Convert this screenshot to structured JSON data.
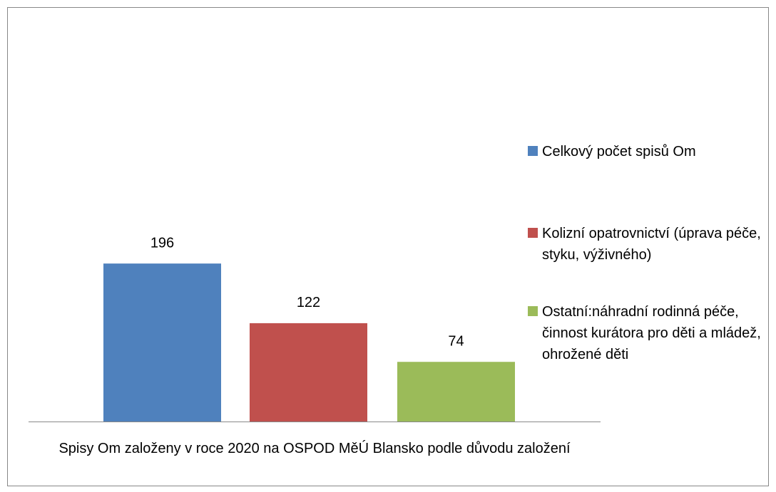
{
  "chart_data": {
    "type": "bar",
    "categories": [
      "Spisy Om založeny v roce 2020 na OSPOD MěÚ Blansko podle důvodu založení"
    ],
    "series": [
      {
        "name": "Celkový počet spisů Om",
        "color": "#4f81bd",
        "values": [
          196
        ]
      },
      {
        "name": "Kolizní opatrovnictví (úprava péče, styku, výživného)",
        "color": "#c0504d",
        "values": [
          122
        ]
      },
      {
        "name": "Ostatní:náhradní rodinná péče, činnost kurátora pro děti a mládež, ohrožené děti",
        "color": "#9bbb59",
        "values": [
          74
        ]
      }
    ],
    "ylim": [
      0,
      250
    ],
    "legend": "right"
  }
}
